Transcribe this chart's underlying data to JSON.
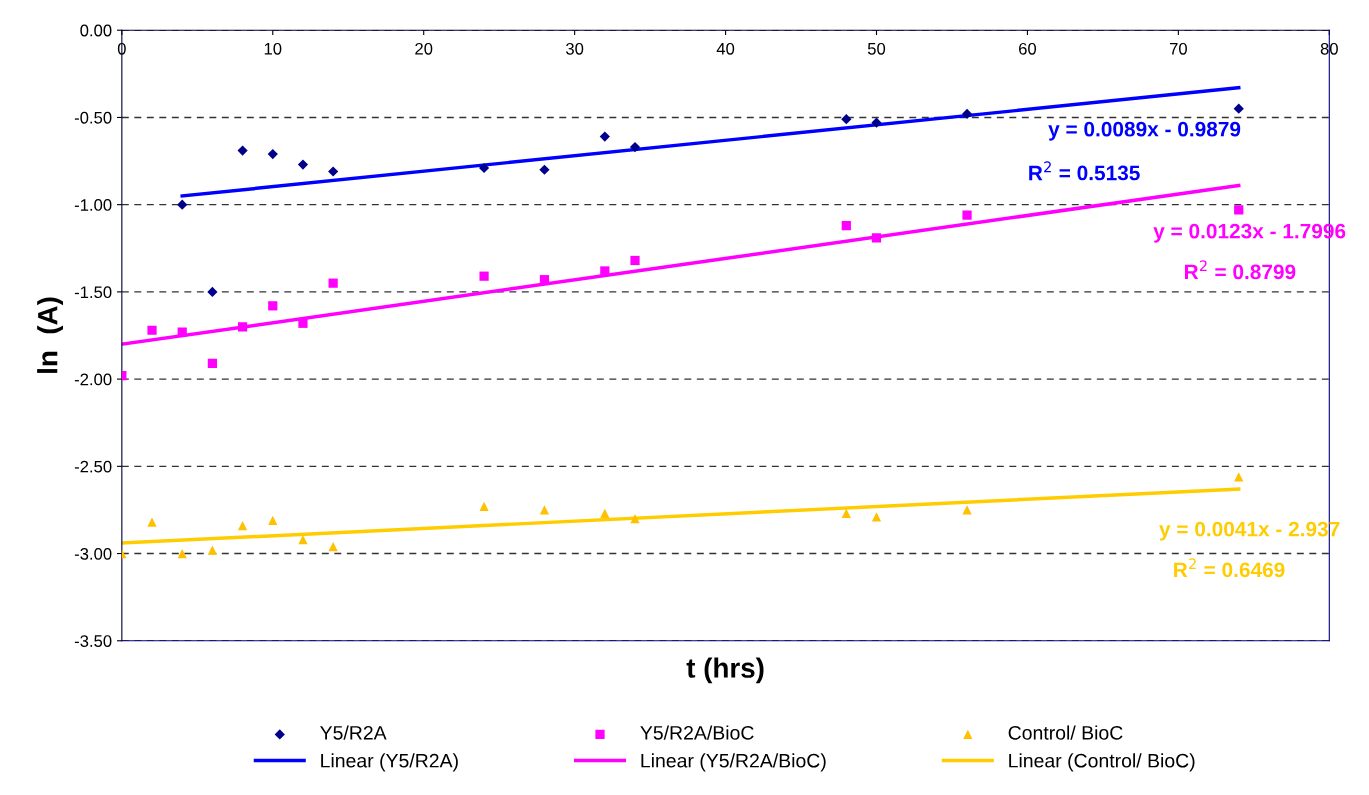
{
  "chart_data": {
    "type": "scatter",
    "xlabel": "t (hrs)",
    "ylabel": "ln  (A)",
    "xlim": [
      0,
      80
    ],
    "xticks": [
      0,
      10,
      20,
      30,
      40,
      50,
      60,
      70,
      80
    ],
    "ylim": [
      -3.5,
      0
    ],
    "yticks": [
      {
        "value": 0,
        "label": "0.00"
      },
      {
        "value": -0.5,
        "label": "-0.50"
      },
      {
        "value": -1,
        "label": "-1.00"
      },
      {
        "value": -1.5,
        "label": "-1.50"
      },
      {
        "value": -2,
        "label": "-2.00"
      },
      {
        "value": -2.5,
        "label": "-2.50"
      },
      {
        "value": -3,
        "label": "-3.00"
      },
      {
        "value": -3.5,
        "label": "-3.50"
      }
    ],
    "grid": "y",
    "legend": "bottom",
    "x": [
      0,
      2,
      4,
      6,
      8,
      10,
      12,
      14,
      24,
      28,
      32,
      34,
      48,
      50,
      56,
      74
    ],
    "series": [
      {
        "name": "Y5/R2A",
        "color": "#00008b",
        "marker": "diamond",
        "values": [
          null,
          null,
          -1.0,
          -1.5,
          -0.69,
          -0.71,
          -0.77,
          -0.81,
          -0.79,
          -0.8,
          -0.61,
          -0.67,
          -0.51,
          -0.53,
          -0.48,
          -0.45
        ]
      },
      {
        "name": "Y5/R2A/BioC",
        "color": "#ff00ff",
        "marker": "square",
        "values": [
          -1.98,
          -1.72,
          -1.73,
          -1.91,
          -1.7,
          -1.58,
          -1.68,
          -1.45,
          -1.41,
          -1.43,
          -1.38,
          -1.32,
          -1.12,
          -1.19,
          -1.06,
          -1.03
        ]
      },
      {
        "name": "Control/ BioC",
        "color": "#ffc000",
        "marker": "triangle",
        "values": [
          -3.0,
          -2.82,
          -3.0,
          -2.98,
          -2.84,
          -2.81,
          -2.92,
          -2.96,
          -2.73,
          -2.75,
          -2.77,
          -2.8,
          -2.77,
          -2.79,
          -2.75,
          -2.56
        ]
      },
      {
        "name": "Linear (Y5/R2A)",
        "type": "line",
        "color": "#0000ff",
        "line_style": "solid",
        "x": [
          4,
          74
        ],
        "values": [
          -0.95,
          -0.33
        ]
      },
      {
        "name": "Linear (Y5/R2A/BioC)",
        "type": "line",
        "color": "#ff00ff",
        "line_style": "solid",
        "x": [
          0,
          74
        ],
        "values": [
          -1.8,
          -0.89
        ]
      },
      {
        "name": "Linear (Control/ BioC)",
        "type": "line",
        "color": "#ffcc00",
        "line_style": "solid",
        "x": [
          0,
          74
        ],
        "values": [
          -2.94,
          -2.63
        ]
      }
    ],
    "annotations": [
      "y = 0.0089x - 0.9879",
      "R$^{2}$ = 0.5135",
      "y = 0.0123x - 1.7996",
      "R$^{2}$ = 0.8799",
      "y = 0.0041x - 2.937",
      "R$^{2}$ = 0.6469"
    ]
  }
}
